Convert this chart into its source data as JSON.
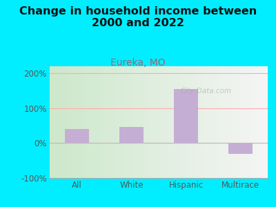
{
  "title": "Change in household income between\n2000 and 2022",
  "subtitle": "Eureka, MO",
  "categories": [
    "All",
    "White",
    "Hispanic",
    "Multirace"
  ],
  "values": [
    40,
    47,
    155,
    -30
  ],
  "bar_color": "#c5aed4",
  "background_outer": "#00eeff",
  "background_inner_left": "#cde8cb",
  "background_inner_right": "#f5f5f5",
  "title_fontsize": 11.5,
  "subtitle_fontsize": 10,
  "subtitle_color": "#996677",
  "tick_label_color": "#555555",
  "ylim": [
    -100,
    220
  ],
  "yticks": [
    -100,
    0,
    100,
    200
  ],
  "grid_color": "#ffaaaa",
  "watermark": "City-Data.com"
}
